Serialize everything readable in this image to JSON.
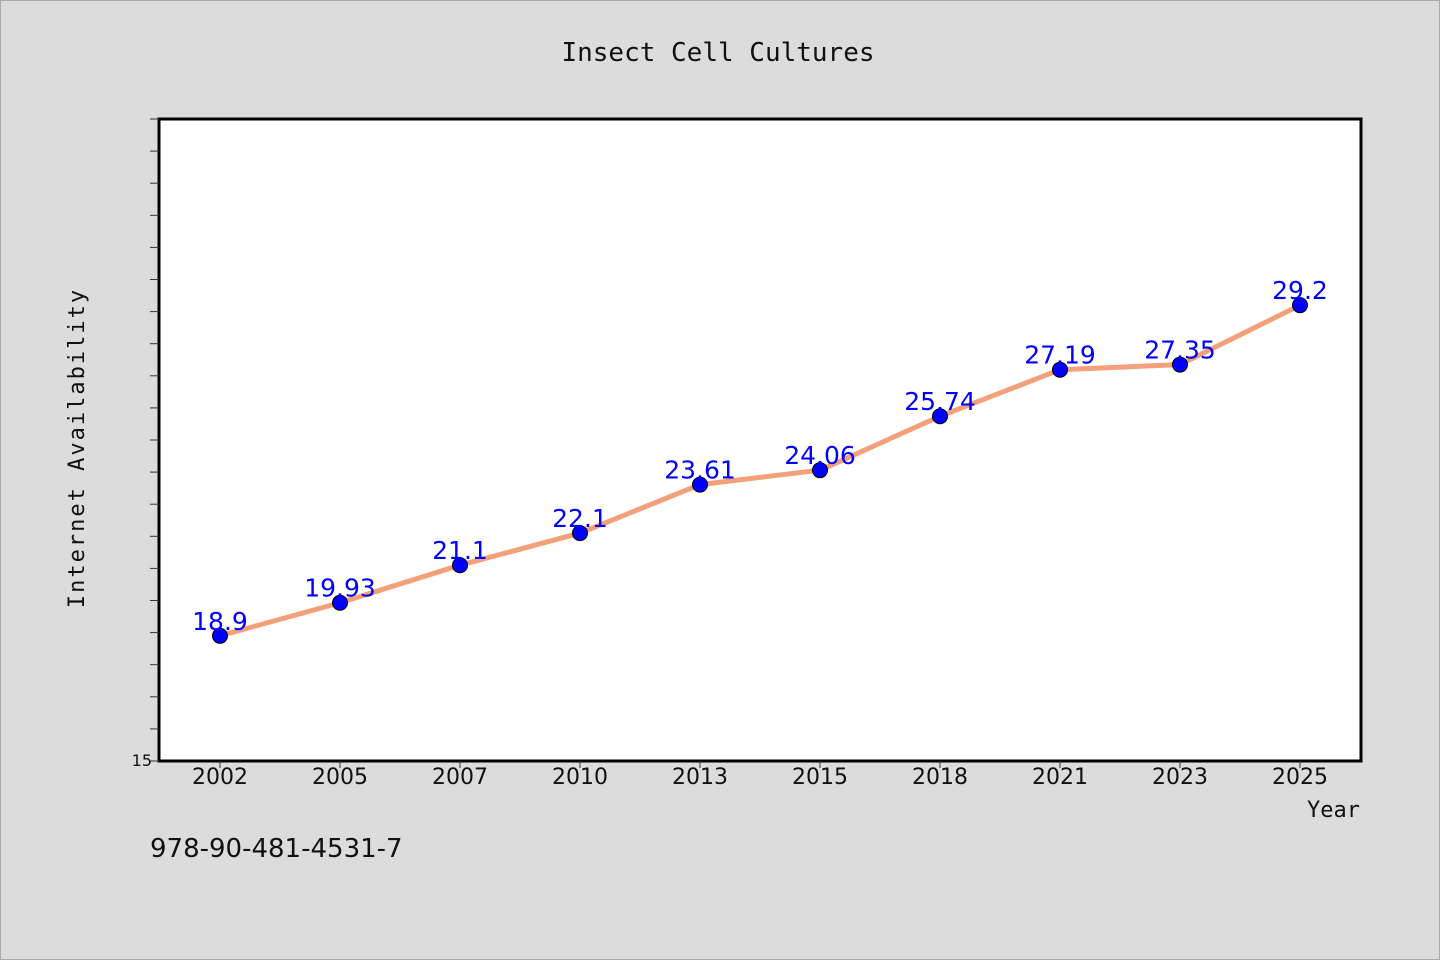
{
  "chart_data": {
    "type": "line",
    "title": "Insect Cell Cultures",
    "xlabel": "Year",
    "ylabel": "Internet Availability",
    "categories": [
      "2002",
      "2005",
      "2007",
      "2010",
      "2013",
      "2015",
      "2018",
      "2021",
      "2023",
      "2025"
    ],
    "series": [
      {
        "values": [
          18.9,
          19.93,
          21.1,
          22.1,
          23.61,
          24.06,
          25.74,
          27.19,
          27.35,
          29.2
        ]
      }
    ],
    "data_labels": [
      "18.9",
      "19.93",
      "21.1",
      "22.1",
      "23.61",
      "24.06",
      "25.74",
      "27.19",
      "27.35",
      "29.2"
    ],
    "ylim": [
      15,
      35
    ],
    "y_tick_label": "15",
    "grid": false,
    "line_color": "#f4a07a",
    "marker_color": "#0000ff",
    "label_color": "#0000ff"
  },
  "footer": {
    "code": "978-90-481-4531-7"
  }
}
